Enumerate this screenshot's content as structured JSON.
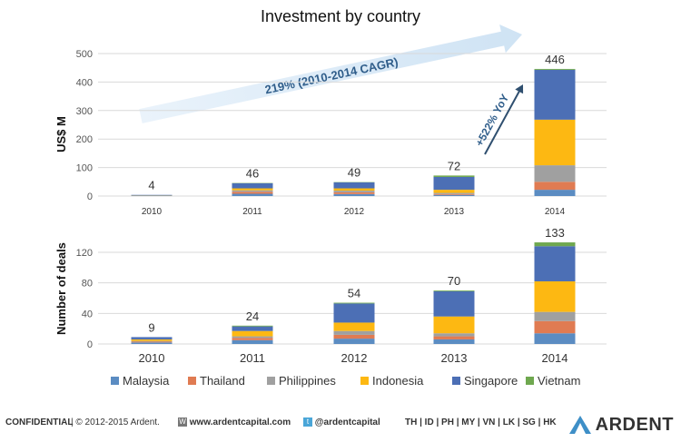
{
  "colors": {
    "Malaysia": "#5b8cc2",
    "Thailand": "#e07b52",
    "Philippines": "#a0a0a0",
    "Indonesia": "#fdb812",
    "Singapore": "#4c6fb5",
    "Vietnam": "#6fa84f",
    "arrow": "#cfe3f4",
    "arrow_text": "#2f5d8a"
  },
  "chart_data": [
    {
      "type": "bar",
      "stacked": true,
      "title": "Investment by country",
      "ylabel": "US$ M",
      "ylim": [
        0,
        500
      ],
      "yticks": [
        0,
        100,
        200,
        300,
        400,
        500
      ],
      "grid": true,
      "categories": [
        "2010",
        "2011",
        "2012",
        "2013",
        "2014"
      ],
      "totals": [
        "4",
        "46",
        "49",
        "72",
        "446"
      ],
      "series": [
        {
          "name": "Malaysia",
          "values": [
            1,
            8,
            7,
            4,
            22
          ]
        },
        {
          "name": "Thailand",
          "values": [
            0,
            7,
            6,
            3,
            28
          ]
        },
        {
          "name": "Philippines",
          "values": [
            0,
            5,
            6,
            4,
            58
          ]
        },
        {
          "name": "Indonesia",
          "values": [
            1,
            7,
            8,
            11,
            160
          ]
        },
        {
          "name": "Singapore",
          "values": [
            2,
            18,
            21,
            45,
            175
          ]
        },
        {
          "name": "Vietnam",
          "values": [
            0,
            1,
            1,
            5,
            3
          ]
        }
      ],
      "annotations": {
        "cagr": "219% (2010-2014 CAGR)",
        "yoy": "+522% YoY"
      }
    },
    {
      "type": "bar",
      "stacked": true,
      "ylabel": "Number of deals",
      "ylim": [
        0,
        140
      ],
      "yticks": [
        0,
        40,
        80,
        120
      ],
      "grid": true,
      "categories": [
        "2010",
        "2011",
        "2012",
        "2013",
        "2014"
      ],
      "totals": [
        "9",
        "24",
        "54",
        "70",
        "133"
      ],
      "series": [
        {
          "name": "Malaysia",
          "values": [
            2,
            5,
            7,
            6,
            14
          ]
        },
        {
          "name": "Thailand",
          "values": [
            1,
            3,
            5,
            4,
            16
          ]
        },
        {
          "name": "Philippines",
          "values": [
            1,
            2,
            5,
            4,
            12
          ]
        },
        {
          "name": "Indonesia",
          "values": [
            2,
            7,
            11,
            22,
            40
          ]
        },
        {
          "name": "Singapore",
          "values": [
            3,
            6,
            25,
            33,
            46
          ]
        },
        {
          "name": "Vietnam",
          "values": [
            0,
            1,
            1,
            1,
            5
          ]
        }
      ]
    }
  ],
  "legend": [
    "Malaysia",
    "Thailand",
    "Philippines",
    "Indonesia",
    "Singapore",
    "Vietnam"
  ],
  "footer": {
    "confidential": "CONFIDENTIAL",
    "copyright": "|  © 2012-2015 Ardent.",
    "web_icon": "W",
    "website": "www.ardentcapital.com",
    "twitter_icon": "t",
    "twitter": "@ardentcapital",
    "countries": "TH | ID | PH | MY | VN | LK | SG | HK",
    "brand": "ARDENT"
  }
}
